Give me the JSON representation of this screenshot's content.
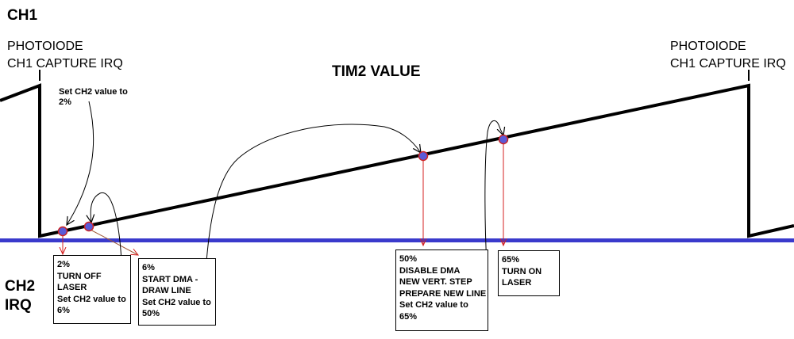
{
  "labels": {
    "ch1": "CH1",
    "ch2_line1": "CH2",
    "ch2_line2": "IRQ",
    "tim2_value": "TIM2 VALUE",
    "photodiode_left": [
      "PHOTOIODE",
      "CH1 CAPTURE IRQ"
    ],
    "photodiode_right": [
      "PHOTOIODE",
      "CH1 CAPTURE IRQ"
    ],
    "set_ch2_note": [
      "Set CH2 value to",
      "2%"
    ]
  },
  "boxes": {
    "box_2": [
      "2%",
      "TURN OFF",
      "LASER",
      "Set CH2 value to",
      "6%"
    ],
    "box_6": [
      "6%",
      "START DMA -",
      "DRAW LINE",
      "Set CH2 value to",
      "50%"
    ],
    "box_50": [
      "50%",
      "DISABLE DMA",
      "NEW VERT. STEP",
      "PREPARE NEW LINE",
      "Set CH2 value to",
      "65%"
    ],
    "box_65": [
      "65%",
      "TURN ON",
      "LASER"
    ]
  },
  "colors": {
    "waveform": "#000000",
    "irq_line": "#3a3acc",
    "point_fill": "#5a5ad8",
    "point_ring": "#cc2222",
    "arrow_red": "#d42020",
    "arrow_brown": "#a05a3a"
  },
  "markers_percent": [
    2,
    6,
    50,
    65
  ]
}
